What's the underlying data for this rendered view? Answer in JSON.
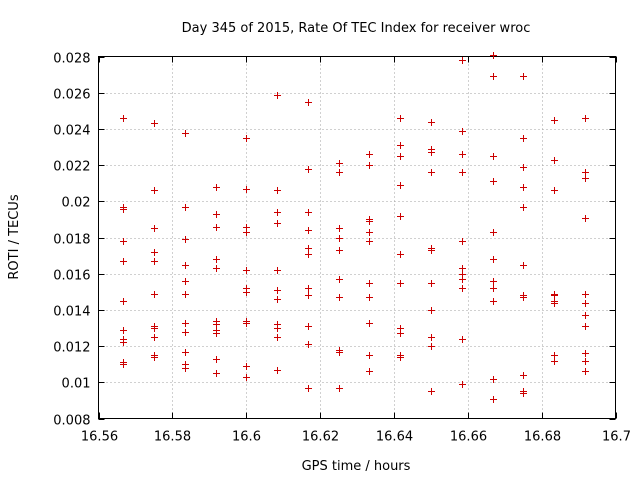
{
  "chart_data": {
    "type": "scatter",
    "title": "Day 345 of 2015, Rate Of TEC Index for receiver wroc",
    "xlabel": "GPS time / hours",
    "ylabel": "ROTI / TECUs",
    "xlim": [
      16.56,
      16.7
    ],
    "ylim": [
      0.008,
      0.028
    ],
    "xticks": [
      16.56,
      16.58,
      16.6,
      16.62,
      16.64,
      16.66,
      16.68,
      16.7
    ],
    "xtick_labels": [
      "16.56",
      "16.58",
      "16.6",
      "16.62",
      "16.64",
      "16.66",
      "16.68",
      "16.7"
    ],
    "yticks": [
      0.008,
      0.01,
      0.012,
      0.014,
      0.016,
      0.018,
      0.02,
      0.022,
      0.024,
      0.026,
      0.028
    ],
    "ytick_labels": [
      "0.008",
      "0.01",
      "0.012",
      "0.014",
      "0.016",
      "0.018",
      "0.02",
      "0.022",
      "0.024",
      "0.026",
      "0.028"
    ],
    "grid": true,
    "marker": "+",
    "marker_color": "#cc0000",
    "series": [
      {
        "x": 16.5667,
        "y": [
          0.0246,
          0.0197,
          0.0196,
          0.0178,
          0.0167,
          0.0145,
          0.0129,
          0.0124,
          0.0122,
          0.0111,
          0.011
        ]
      },
      {
        "x": 16.575,
        "y": [
          0.0243,
          0.0206,
          0.0185,
          0.0172,
          0.0167,
          0.0149,
          0.0131,
          0.013,
          0.0125,
          0.0115,
          0.0114
        ]
      },
      {
        "x": 16.5833,
        "y": [
          0.0238,
          0.0197,
          0.0179,
          0.0165,
          0.0156,
          0.0149,
          0.0133,
          0.0128,
          0.0117,
          0.011,
          0.0108
        ]
      },
      {
        "x": 16.5917,
        "y": [
          0.0208,
          0.0193,
          0.0186,
          0.0168,
          0.0163,
          0.0134,
          0.0132,
          0.0129,
          0.0127,
          0.0113,
          0.0105
        ]
      },
      {
        "x": 16.6,
        "y": [
          0.0235,
          0.0207,
          0.0186,
          0.0183,
          0.0162,
          0.0152,
          0.015,
          0.0134,
          0.0133,
          0.0109,
          0.0103
        ]
      },
      {
        "x": 16.6083,
        "y": [
          0.0259,
          0.0206,
          0.0194,
          0.0188,
          0.0162,
          0.0151,
          0.0146,
          0.0132,
          0.013,
          0.0125,
          0.0107
        ]
      },
      {
        "x": 16.6167,
        "y": [
          0.0255,
          0.0218,
          0.0194,
          0.0184,
          0.0174,
          0.0171,
          0.0152,
          0.0148,
          0.0131,
          0.0121,
          0.0097
        ]
      },
      {
        "x": 16.625,
        "y": [
          0.0221,
          0.0216,
          0.0185,
          0.018,
          0.0173,
          0.0157,
          0.0147,
          0.0118,
          0.0117,
          0.0097
        ]
      },
      {
        "x": 16.6333,
        "y": [
          0.0226,
          0.022,
          0.019,
          0.0189,
          0.0183,
          0.0178,
          0.0155,
          0.0147,
          0.0133,
          0.0115,
          0.0106
        ]
      },
      {
        "x": 16.6417,
        "y": [
          0.0246,
          0.0231,
          0.0225,
          0.0209,
          0.0192,
          0.0171,
          0.0155,
          0.013,
          0.0127,
          0.0115,
          0.0114
        ]
      },
      {
        "x": 16.65,
        "y": [
          0.0244,
          0.0229,
          0.0227,
          0.0216,
          0.0174,
          0.0173,
          0.0155,
          0.014,
          0.0125,
          0.012,
          0.0095
        ]
      },
      {
        "x": 16.6583,
        "y": [
          0.0278,
          0.0239,
          0.0226,
          0.0216,
          0.0178,
          0.0163,
          0.016,
          0.0157,
          0.0152,
          0.0124,
          0.0099
        ]
      },
      {
        "x": 16.6667,
        "y": [
          0.0281,
          0.0269,
          0.0225,
          0.0211,
          0.0183,
          0.0168,
          0.0156,
          0.0152,
          0.0145,
          0.0102,
          0.0091
        ]
      },
      {
        "x": 16.675,
        "y": [
          0.0269,
          0.0235,
          0.0219,
          0.0208,
          0.0197,
          0.0165,
          0.0148,
          0.0147,
          0.0104,
          0.0095,
          0.0094
        ]
      },
      {
        "x": 16.6833,
        "y": [
          0.0245,
          0.0223,
          0.0206,
          0.0149,
          0.0148,
          0.0145,
          0.0144,
          0.0115,
          0.0112
        ]
      },
      {
        "x": 16.6917,
        "y": [
          0.0246,
          0.0216,
          0.0213,
          0.0191,
          0.0149,
          0.0144,
          0.0137,
          0.0131,
          0.0116,
          0.0112,
          0.0106
        ]
      }
    ]
  }
}
